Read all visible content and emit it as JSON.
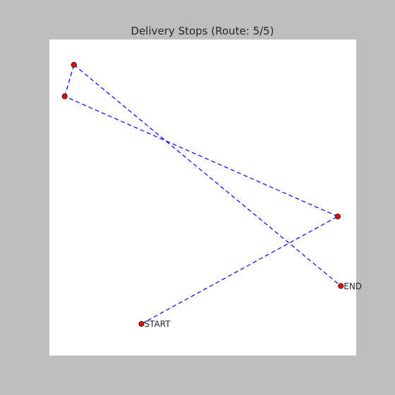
{
  "chart_data": {
    "type": "scatter",
    "title": "Delivery Stops (Route: 5/5)",
    "xlabel": "",
    "ylabel": "",
    "xlim": [
      0,
      100
    ],
    "ylim": [
      0,
      100
    ],
    "axes_visible": false,
    "grid": false,
    "marker_color": "#ff0000",
    "marker_edge_color": "#000000",
    "line_color": "#0000ff",
    "line_style": "dashed",
    "route": [
      {
        "x": 30,
        "y": 10,
        "label": "START"
      },
      {
        "x": 94,
        "y": 44,
        "label": ""
      },
      {
        "x": 5,
        "y": 82,
        "label": ""
      },
      {
        "x": 8,
        "y": 92,
        "label": ""
      },
      {
        "x": 95,
        "y": 22,
        "label": "END"
      }
    ]
  }
}
